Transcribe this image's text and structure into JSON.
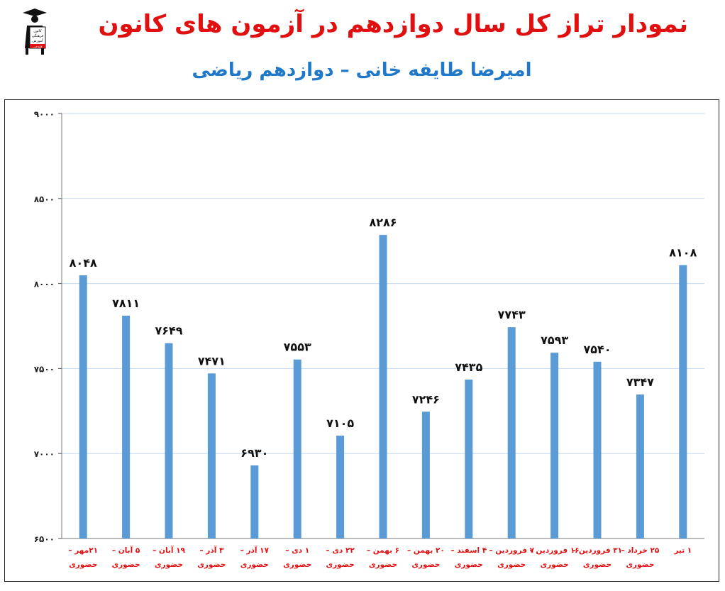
{
  "title": "نمودار تراز کل سال دوازدهم در آزمون های کانون",
  "subtitle": "امیرضا طایفه خانی – دوازدهم ریاضی",
  "logo": {
    "lines": [
      "کانون",
      "فرهنگی",
      "آموزش",
      "قلم‌چی"
    ]
  },
  "colors": {
    "bar": "#5b9bd5",
    "title": "#e01010",
    "subtitle": "#1f78c8",
    "category_label": "#e01010",
    "grid": "#c5d9ee"
  },
  "chart_data": {
    "type": "bar",
    "title": "نمودار تراز کل سال دوازدهم در آزمون های کانون",
    "subtitle": "امیرضا طایفه خانی – دوازدهم ریاضی",
    "categories": [
      "۲۱مهر –",
      "۵ آبان –",
      "۱۹ آبان –",
      "۳ آذر –",
      "۱۷ آذر –",
      "۱ دی –",
      "۲۲ دی –",
      "۶ بهمن –",
      "۲۰ بهمن –",
      "۴ اسفند –",
      "۷ فروردین –",
      "۱۶ فروردین –",
      "۳۱ فروردین –",
      "۲۵ خرداد –",
      "۱ تیر"
    ],
    "category_sublabels": [
      "حضوری",
      "حضوری",
      "حضوری",
      "حضوری",
      "حضوری",
      "حضوری",
      "حضوری",
      "حضوری",
      "حضوری",
      "حضوری",
      "حضوری",
      "حضوری",
      "حضوری",
      "حضوری",
      ""
    ],
    "values": [
      8048,
      7811,
      7649,
      7471,
      6930,
      7553,
      7105,
      8286,
      7246,
      7435,
      7743,
      7593,
      7540,
      7347,
      8108
    ],
    "value_labels": [
      "۸۰۴۸",
      "۷۸۱۱",
      "۷۶۴۹",
      "۷۴۷۱",
      "۶۹۳۰",
      "۷۵۵۳",
      "۷۱۰۵",
      "۸۲۸۶",
      "۷۲۴۶",
      "۷۴۳۵",
      "۷۷۴۳",
      "۷۵۹۳",
      "۷۵۴۰",
      "۷۳۴۷",
      "۸۱۰۸"
    ],
    "ylim": [
      6500,
      9000
    ],
    "yticks": [
      6500,
      7000,
      7500,
      8000,
      8500,
      9000
    ],
    "ytick_labels": [
      "۶۵۰۰",
      "۷۰۰۰",
      "۷۵۰۰",
      "۸۰۰۰",
      "۸۵۰۰",
      "۹۰۰۰"
    ],
    "grid": true,
    "legend": "none"
  }
}
